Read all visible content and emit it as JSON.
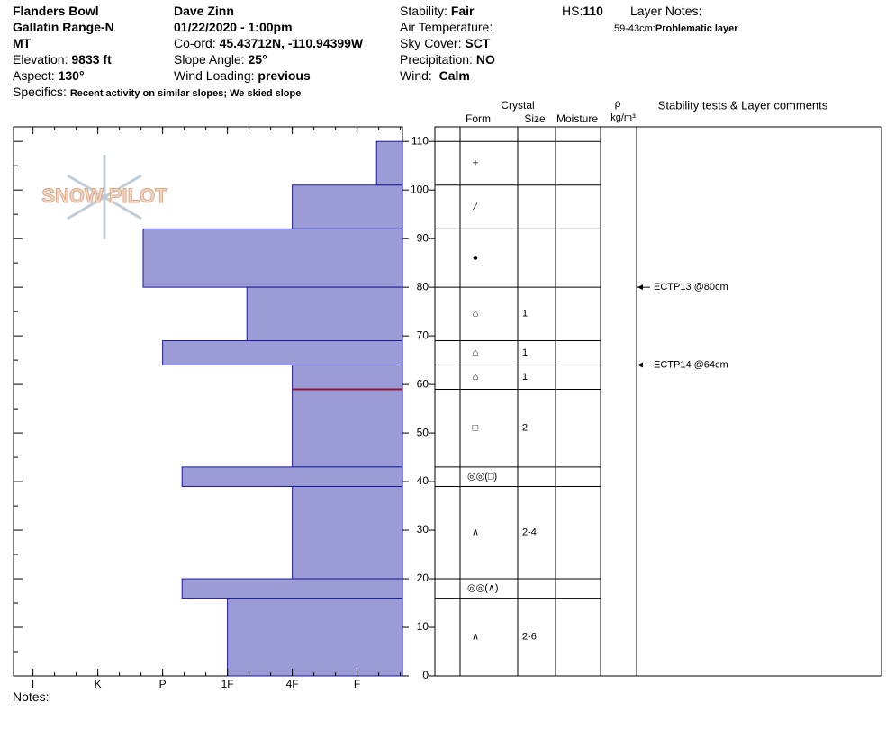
{
  "header": {
    "site": "Flanders Bowl",
    "range": "Gallatin Range-N",
    "state": "MT",
    "elevation_label": "Elevation:",
    "elevation": "9833 ft",
    "aspect_label": "Aspect:",
    "aspect": "130°",
    "specifics_label": "Specifics:",
    "specifics": "Recent activity on similar slopes; We skied slope",
    "observer": "Dave Zinn",
    "datetime": "01/22/2020 - 1:00pm",
    "coord_label": "Co-ord:",
    "coord": "45.43712N, -110.94399W",
    "slope_label": "Slope Angle:",
    "slope": "25°",
    "wind_loading_label": "Wind Loading:",
    "wind_loading": "previous",
    "stability_label": "Stability:",
    "stability": "Fair",
    "air_temp_label": "Air Temperature:",
    "sky_label": "Sky Cover:",
    "sky": "SCT",
    "precip_label": "Precipitation:",
    "precip": "NO",
    "wind_label": "Wind:",
    "wind": "Calm",
    "hs_label": "HS:",
    "hs": "110",
    "layer_notes_label": "Layer Notes:",
    "layer_note_range": "59-43cm:",
    "layer_note": "Problematic layer"
  },
  "logo": "SNOW PILOT",
  "profile": {
    "depth_lim": [
      0,
      113
    ],
    "depth_ticks": [
      0,
      10,
      20,
      30,
      40,
      50,
      60,
      70,
      80,
      90,
      100,
      110
    ],
    "hardness_lim": [
      0.7,
      6.7
    ],
    "hardness_ticks": [
      {
        "value": 1,
        "label": "I"
      },
      {
        "value": 2,
        "label": "K"
      },
      {
        "value": 3,
        "label": "P"
      },
      {
        "value": 4,
        "label": "1F"
      },
      {
        "value": 5,
        "label": "4F"
      },
      {
        "value": 6,
        "label": "F"
      }
    ],
    "bar_color": "#9b9bd6",
    "problem_depth": 59,
    "problem_color": "#8b1a3a",
    "layers": [
      {
        "top": 110,
        "bottom": 101,
        "hardness": 6.3,
        "form": "+"
      },
      {
        "top": 101,
        "bottom": 92,
        "hardness": 5,
        "form": "⁄"
      },
      {
        "top": 92,
        "bottom": 80,
        "hardness": 2.7,
        "form": "●"
      },
      {
        "top": 80,
        "bottom": 69,
        "hardness": 4.3,
        "form": "⌂",
        "size": "1"
      },
      {
        "top": 69,
        "bottom": 64,
        "hardness": 3,
        "form": "⌂",
        "size": "1"
      },
      {
        "top": 64,
        "bottom": 59,
        "hardness": 5,
        "form": "⌂",
        "size": "1"
      },
      {
        "top": 59,
        "bottom": 43,
        "hardness": 5,
        "form": "□",
        "size": "2"
      },
      {
        "top": 43,
        "bottom": 39,
        "hardness": 3.3,
        "form": "◎◎(□)"
      },
      {
        "top": 39,
        "bottom": 20,
        "hardness": 5,
        "form": "∧",
        "size": "2-4"
      },
      {
        "top": 20,
        "bottom": 16,
        "hardness": 3.3,
        "form": "◎◎(∧)"
      },
      {
        "top": 16,
        "bottom": 0,
        "hardness": 4,
        "form": "∧",
        "size": "2-6"
      }
    ]
  },
  "table": {
    "crystal": "Crystal",
    "form": "Form",
    "size": "Size",
    "moisture": "Moisture",
    "rho": "ρ",
    "density_unit": "kg/m³",
    "comments": "Stability tests & Layer comments"
  },
  "tests": [
    {
      "label": "ECTP13 @80cm",
      "depth": 80
    },
    {
      "label": "ECTP14 @64cm",
      "depth": 64
    }
  ],
  "notes_label": "Notes:"
}
